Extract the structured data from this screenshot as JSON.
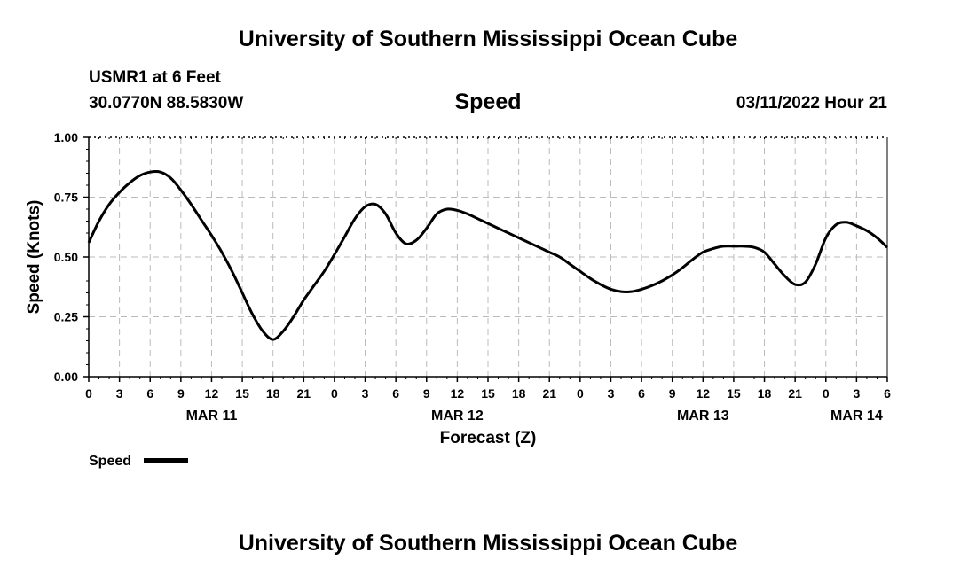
{
  "header": {
    "title": "University of Southern Mississippi Ocean Cube",
    "station": "USMR1 at 6 Feet",
    "coords": "30.0770N  88.5830W",
    "variable": "Speed",
    "issued": "03/11/2022 Hour 21"
  },
  "footer": {
    "title": "University of Southern Mississippi Ocean Cube"
  },
  "chart_data": {
    "type": "line",
    "ylabel": "Speed (Knots)",
    "xlabel": "Forecast (Z)",
    "ylim": [
      0,
      1.0
    ],
    "yticks": [
      {
        "v": 0.0,
        "label": "0.00"
      },
      {
        "v": 0.25,
        "label": "0.25"
      },
      {
        "v": 0.5,
        "label": "0.50"
      },
      {
        "v": 0.75,
        "label": "0.75"
      },
      {
        "v": 1.0,
        "label": "1.00"
      }
    ],
    "xlim_hours": [
      0,
      78
    ],
    "xticks": [
      "0",
      "3",
      "6",
      "9",
      "12",
      "15",
      "18",
      "21",
      "0",
      "3",
      "6",
      "9",
      "12",
      "15",
      "18",
      "21",
      "0",
      "3",
      "6",
      "9",
      "12",
      "15",
      "18",
      "21",
      "0",
      "3",
      "6"
    ],
    "date_labels": [
      {
        "label": "MAR 11",
        "hour": 12
      },
      {
        "label": "MAR 12",
        "hour": 36
      },
      {
        "label": "MAR 13",
        "hour": 60
      },
      {
        "label": "MAR 14",
        "hour": 75
      }
    ],
    "grid": true,
    "legend": {
      "label": "Speed",
      "color": "#000000",
      "placement": "bottom-left"
    },
    "series": [
      {
        "name": "Speed",
        "color": "#000000",
        "x": [
          0,
          1,
          2,
          3,
          4,
          5,
          6,
          7,
          8,
          9,
          10,
          11,
          12,
          13,
          14,
          15,
          16,
          17,
          18,
          19,
          20,
          21,
          22,
          23,
          24,
          25,
          26,
          27,
          28,
          29,
          30,
          31,
          32,
          33,
          34,
          35,
          36,
          37,
          38,
          39,
          40,
          41,
          42,
          43,
          44,
          45,
          46,
          47,
          48,
          49,
          50,
          51,
          52,
          53,
          54,
          55,
          56,
          57,
          58,
          59,
          60,
          61,
          62,
          63,
          64,
          65,
          66,
          67,
          68,
          69,
          70,
          71,
          72,
          73,
          74,
          75,
          76,
          77,
          78
        ],
        "values": [
          0.56,
          0.65,
          0.72,
          0.77,
          0.81,
          0.84,
          0.855,
          0.855,
          0.83,
          0.78,
          0.72,
          0.655,
          0.59,
          0.52,
          0.44,
          0.35,
          0.26,
          0.19,
          0.155,
          0.19,
          0.25,
          0.32,
          0.38,
          0.44,
          0.51,
          0.585,
          0.66,
          0.71,
          0.72,
          0.68,
          0.6,
          0.555,
          0.57,
          0.62,
          0.68,
          0.7,
          0.695,
          0.68,
          0.66,
          0.64,
          0.62,
          0.6,
          0.58,
          0.56,
          0.54,
          0.52,
          0.5,
          0.47,
          0.44,
          0.41,
          0.385,
          0.365,
          0.355,
          0.355,
          0.365,
          0.38,
          0.4,
          0.425,
          0.455,
          0.49,
          0.52,
          0.535,
          0.545,
          0.545,
          0.545,
          0.54,
          0.52,
          0.47,
          0.42,
          0.385,
          0.395,
          0.47,
          0.58,
          0.635,
          0.645,
          0.63,
          0.61,
          0.58,
          0.54
        ]
      }
    ]
  }
}
